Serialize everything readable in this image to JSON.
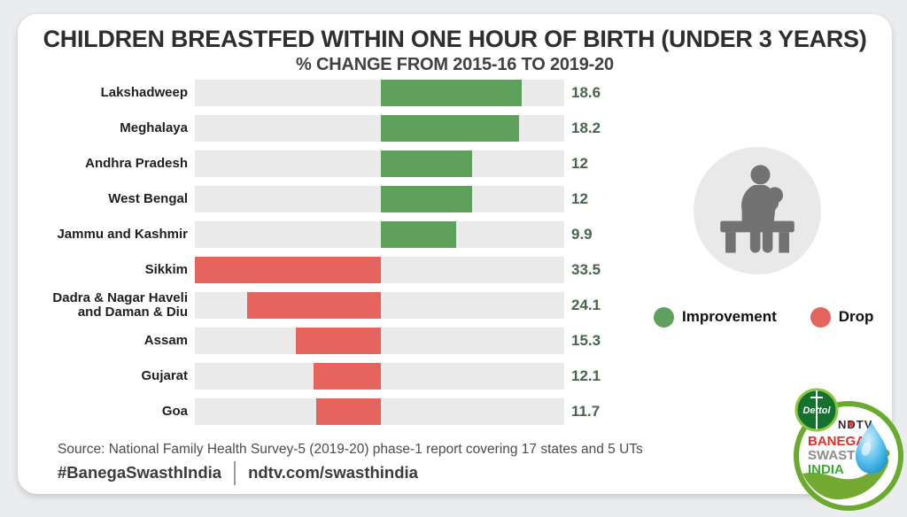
{
  "card": {
    "title": "CHILDREN BREASTFED WITHIN ONE HOUR OF BIRTH (UNDER 3 YEARS)",
    "subtitle": "% CHANGE FROM 2015-16 TO 2019-20"
  },
  "chart_data": {
    "type": "bar",
    "orientation": "horizontal",
    "title": "CHILDREN BREASTFED WITHIN ONE HOUR OF BIRTH (UNDER 3 YEARS)",
    "subtitle": "% CHANGE FROM 2015-16 TO 2019-20",
    "categories": [
      "Lakshadweep",
      "Meghalaya",
      "Andhra Pradesh",
      "West Bengal",
      "Jammu and Kashmir",
      "Sikkim",
      "Dadra & Nagar Haveli and Daman & Diu",
      "Assam",
      "Gujarat",
      "Goa"
    ],
    "rows": [
      {
        "label_lines": [
          "Lakshadweep"
        ],
        "value": 18.6,
        "display": "18.6",
        "direction": "improvement"
      },
      {
        "label_lines": [
          "Meghalaya"
        ],
        "value": 18.2,
        "display": "18.2",
        "direction": "improvement"
      },
      {
        "label_lines": [
          "Andhra Pradesh"
        ],
        "value": 12,
        "display": "12",
        "direction": "improvement"
      },
      {
        "label_lines": [
          "West Bengal"
        ],
        "value": 12,
        "display": "12",
        "direction": "improvement"
      },
      {
        "label_lines": [
          "Jammu and Kashmir"
        ],
        "value": 9.9,
        "display": "9.9",
        "direction": "improvement"
      },
      {
        "label_lines": [
          "Sikkim"
        ],
        "value": 33.5,
        "display": "33.5",
        "direction": "drop"
      },
      {
        "label_lines": [
          "Dadra & Nagar Haveli",
          "and Daman & Diu"
        ],
        "value": 24.1,
        "display": "24.1",
        "direction": "drop"
      },
      {
        "label_lines": [
          "Assam"
        ],
        "value": 15.3,
        "display": "15.3",
        "direction": "drop"
      },
      {
        "label_lines": [
          "Gujarat"
        ],
        "value": 12.1,
        "display": "12.1",
        "direction": "drop"
      },
      {
        "label_lines": [
          "Goa"
        ],
        "value": 11.7,
        "display": "11.7",
        "direction": "drop"
      }
    ],
    "axis": {
      "axis_pct": 50.4,
      "left_max": 33.5,
      "right_max": 24.2,
      "grid": false
    },
    "legend": [
      {
        "label": "Improvement",
        "color": "#5fa05c"
      },
      {
        "label": "Drop",
        "color": "#e6645e"
      }
    ],
    "legend_position": "right",
    "colors": {
      "improvement": "#5fa05c",
      "drop": "#e6645e",
      "track": "#eaeaea",
      "value_text": "#47654a"
    }
  },
  "icon": {
    "name": "breastfeeding-mother-on-bench",
    "circle_bg": "#e9e9e9",
    "silhouette": "#727272"
  },
  "footer": {
    "source": "Source: National Family Health Survey-5 (2019-20) phase-1 report covering 17 states and 5 UTs",
    "hashtag": "#BanegaSwasthIndia",
    "url": "ndtv.com/swasthindia"
  },
  "logo": {
    "dettol": "Dettol",
    "ndtv": "NDTV",
    "line1": "BANEGA",
    "line2": "SWASTH",
    "line3": "INDIA",
    "colors": {
      "ring": "#6aaa2d",
      "banega": "#e62e2a",
      "swasth": "#8c8c8e",
      "india": "#3aaa35",
      "drop": "#29a8e0"
    }
  }
}
